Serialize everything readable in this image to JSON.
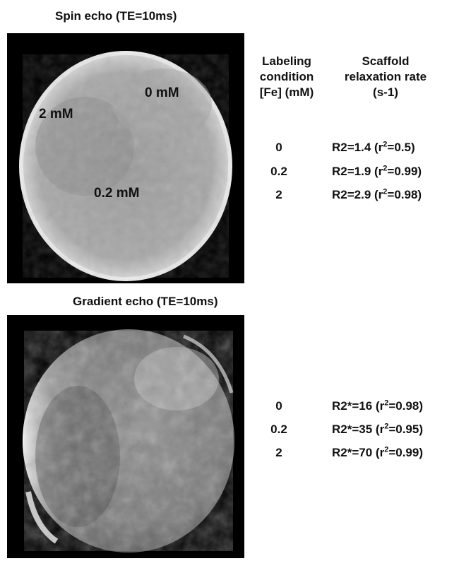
{
  "spin_echo": {
    "title": "Spin echo (TE=10ms)",
    "image_labels": [
      "0 mM",
      "2 mM",
      "0.2 mM"
    ]
  },
  "gradient_echo": {
    "title": "Gradient echo (TE=10ms)"
  },
  "table": {
    "col1_header": [
      "Labeling",
      "condition",
      "[Fe] (mM)"
    ],
    "col2_header": [
      "Scaffold",
      "relaxation rate",
      "(s-1)"
    ],
    "spin_rows": [
      {
        "fe": "0",
        "rate_prefix": "R2=1.4 (r",
        "rate_sup": "2",
        "rate_suffix": "=0.5)"
      },
      {
        "fe": "0.2",
        "rate_prefix": "R2=1.9 (r",
        "rate_sup": "2",
        "rate_suffix": "=0.99)"
      },
      {
        "fe": "2",
        "rate_prefix": "R2=2.9 (r",
        "rate_sup": "2",
        "rate_suffix": "=0.98)"
      }
    ],
    "gradient_rows": [
      {
        "fe": "0",
        "rate_prefix": "R2*=16 (r",
        "rate_sup": "2",
        "rate_suffix": "=0.98)"
      },
      {
        "fe": "0.2",
        "rate_prefix": "R2*=35 (r",
        "rate_sup": "2",
        "rate_suffix": "=0.95)"
      },
      {
        "fe": "2",
        "rate_prefix": "R2*=70 (r",
        "rate_sup": "2",
        "rate_suffix": "=0.99)"
      }
    ]
  }
}
